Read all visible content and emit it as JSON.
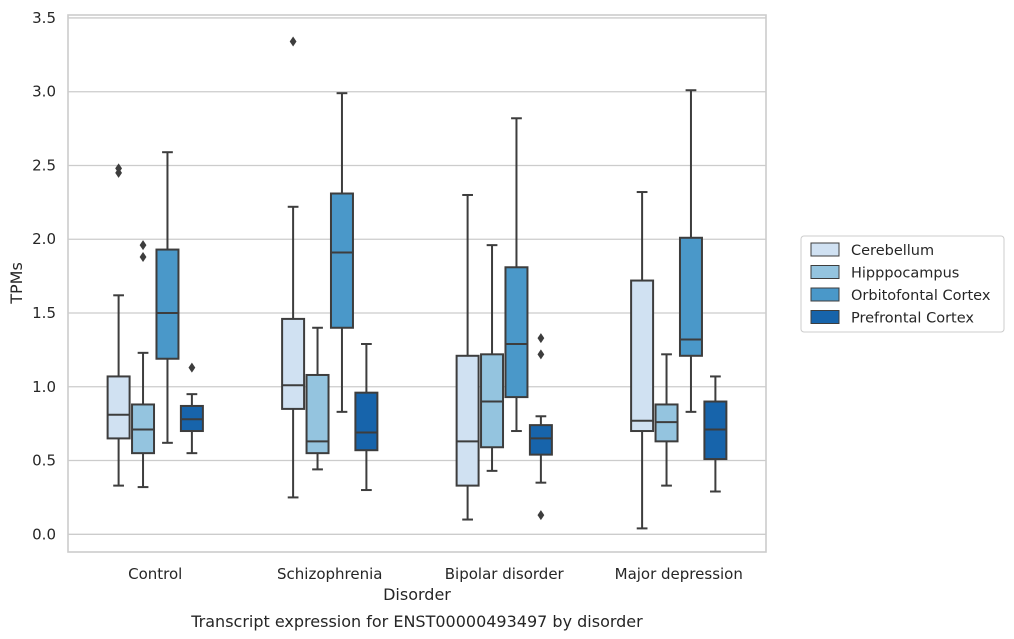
{
  "chart_data": {
    "type": "box",
    "caption": "Transcript expression for ENST00000493497 by disorder",
    "xlabel": "Disorder",
    "ylabel": "TPMs",
    "ylim": [
      -0.12,
      3.52
    ],
    "yticks": [
      0.0,
      0.5,
      1.0,
      1.5,
      2.0,
      2.5,
      3.0,
      3.5
    ],
    "ytick_labels": [
      "0.0",
      "0.5",
      "1.0",
      "1.5",
      "2.0",
      "2.5",
      "3.0",
      "3.5"
    ],
    "grid": true,
    "legend_position": "right",
    "categories": [
      "Control",
      "Schizophrenia",
      "Bipolar disorder",
      "Major depression"
    ],
    "series": [
      {
        "name": "Cerebellum",
        "color": "#d0e1f2",
        "boxes": [
          {
            "whislo": 0.33,
            "q1": 0.65,
            "med": 0.81,
            "q3": 1.07,
            "whishi": 1.62,
            "fliers": [
              2.45,
              2.48
            ]
          },
          {
            "whislo": 0.25,
            "q1": 0.85,
            "med": 1.01,
            "q3": 1.46,
            "whishi": 2.22,
            "fliers": [
              3.34
            ]
          },
          {
            "whislo": 0.1,
            "q1": 0.33,
            "med": 0.63,
            "q3": 1.21,
            "whishi": 2.3,
            "fliers": []
          },
          {
            "whislo": 0.04,
            "q1": 0.7,
            "med": 0.77,
            "q3": 1.72,
            "whishi": 2.32,
            "fliers": []
          }
        ]
      },
      {
        "name": "Hipppocampus",
        "color": "#94c4df",
        "boxes": [
          {
            "whislo": 0.32,
            "q1": 0.55,
            "med": 0.71,
            "q3": 0.88,
            "whishi": 1.23,
            "fliers": [
              1.88,
              1.96
            ]
          },
          {
            "whislo": 0.44,
            "q1": 0.55,
            "med": 0.63,
            "q3": 1.08,
            "whishi": 1.4,
            "fliers": []
          },
          {
            "whislo": 0.43,
            "q1": 0.59,
            "med": 0.9,
            "q3": 1.22,
            "whishi": 1.96,
            "fliers": []
          },
          {
            "whislo": 0.33,
            "q1": 0.63,
            "med": 0.76,
            "q3": 0.88,
            "whishi": 1.22,
            "fliers": []
          }
        ]
      },
      {
        "name": "Orbitofontal Cortex",
        "color": "#4a98c9",
        "boxes": [
          {
            "whislo": 0.62,
            "q1": 1.19,
            "med": 1.5,
            "q3": 1.93,
            "whishi": 2.59,
            "fliers": []
          },
          {
            "whislo": 0.83,
            "q1": 1.4,
            "med": 1.91,
            "q3": 2.31,
            "whishi": 2.99,
            "fliers": []
          },
          {
            "whislo": 0.7,
            "q1": 0.93,
            "med": 1.29,
            "q3": 1.81,
            "whishi": 2.82,
            "fliers": []
          },
          {
            "whislo": 0.83,
            "q1": 1.21,
            "med": 1.32,
            "q3": 2.01,
            "whishi": 3.01,
            "fliers": []
          }
        ]
      },
      {
        "name": "Prefrontal Cortex",
        "color": "#1764ab",
        "boxes": [
          {
            "whislo": 0.55,
            "q1": 0.7,
            "med": 0.78,
            "q3": 0.87,
            "whishi": 0.95,
            "fliers": [
              1.13
            ]
          },
          {
            "whislo": 0.3,
            "q1": 0.57,
            "med": 0.69,
            "q3": 0.96,
            "whishi": 1.29,
            "fliers": []
          },
          {
            "whislo": 0.35,
            "q1": 0.54,
            "med": 0.65,
            "q3": 0.74,
            "whishi": 0.8,
            "fliers": [
              0.13,
              1.22,
              1.33
            ]
          },
          {
            "whislo": 0.29,
            "q1": 0.51,
            "med": 0.71,
            "q3": 0.9,
            "whishi": 1.07,
            "fliers": []
          }
        ]
      }
    ]
  }
}
